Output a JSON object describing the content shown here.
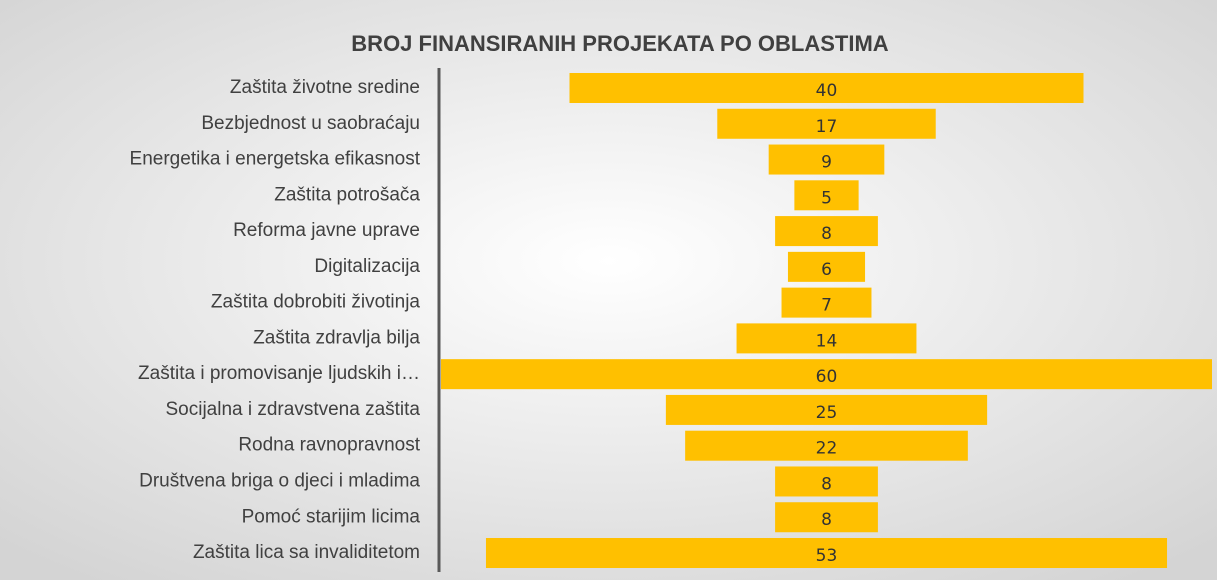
{
  "chart_data": {
    "type": "funnel",
    "title": "BROJ FINANSIRANIH PROJEKATA PO OBLASTIMA",
    "categories": [
      "Zaštita životne sredine",
      "Bezbjednost u saobraćaju",
      "Energetika i energetska efikasnost",
      "Zaštita potrošača",
      "Reforma javne uprave",
      "Digitalizacija",
      "Zaštita dobrobiti životinja",
      "Zaštita zdravlja bilja",
      "Zaštita i promovisanje ljudskih i…",
      "Socijalna i zdravstvena zaštita",
      "Rodna ravnopravnost",
      "Društvena briga o djeci i mladima",
      "Pomoć starijim licima",
      "Zaštita lica sa invaliditetom"
    ],
    "values": [
      40,
      17,
      9,
      5,
      8,
      6,
      7,
      14,
      60,
      25,
      22,
      8,
      8,
      53
    ],
    "color": "#ffc000"
  }
}
